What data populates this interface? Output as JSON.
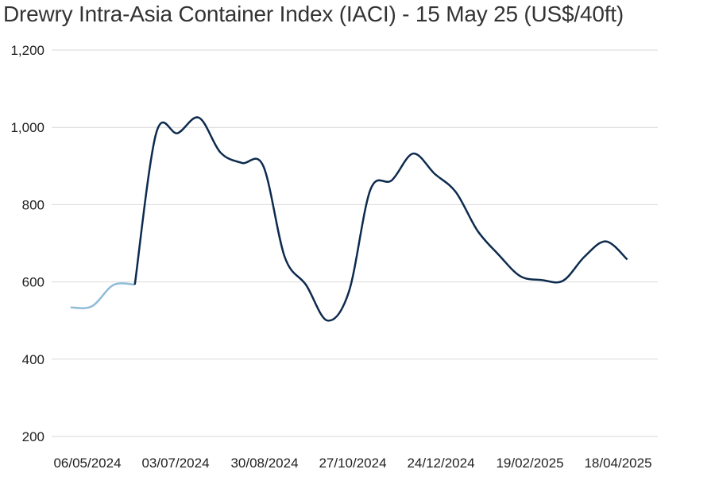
{
  "chart_data": {
    "type": "line",
    "title": "Drewry Intra-Asia Container Index (IACI) - 15 May 25 (US$/40ft)",
    "xlabel": "",
    "ylabel": "",
    "ylim": [
      200,
      1200
    ],
    "y_ticks": [
      "1,200",
      "1,000",
      "800",
      "600",
      "400",
      "200"
    ],
    "x_ticks": [
      "06/05/2024",
      "03/07/2024",
      "30/08/2024",
      "27/10/2024",
      "24/12/2024",
      "19/02/2025",
      "18/04/2025"
    ],
    "grid": true,
    "legend": "none",
    "colors": {
      "early": "#8fbcd8",
      "main": "#0d2b4e",
      "grid": "#d9d9d9"
    },
    "series": [
      {
        "values_early": [
          {
            "x": "2024-04-25",
            "y": 534
          },
          {
            "x": "2024-05-09",
            "y": 537
          },
          {
            "x": "2024-05-23",
            "y": 592
          },
          {
            "x": "2024-06-06",
            "y": 593
          }
        ],
        "values": [
          {
            "x": "2024-06-06",
            "y": 593
          },
          {
            "x": "2024-06-20",
            "y": 985
          },
          {
            "x": "2024-07-04",
            "y": 985
          },
          {
            "x": "2024-07-18",
            "y": 1025
          },
          {
            "x": "2024-08-01",
            "y": 935
          },
          {
            "x": "2024-08-15",
            "y": 908
          },
          {
            "x": "2024-08-29",
            "y": 900
          },
          {
            "x": "2024-09-12",
            "y": 665
          },
          {
            "x": "2024-09-26",
            "y": 592
          },
          {
            "x": "2024-10-10",
            "y": 500
          },
          {
            "x": "2024-10-24",
            "y": 575
          },
          {
            "x": "2024-11-07",
            "y": 838
          },
          {
            "x": "2024-11-21",
            "y": 863
          },
          {
            "x": "2024-12-05",
            "y": 932
          },
          {
            "x": "2024-12-19",
            "y": 880
          },
          {
            "x": "2025-01-02",
            "y": 832
          },
          {
            "x": "2025-01-16",
            "y": 733
          },
          {
            "x": "2025-01-30",
            "y": 670
          },
          {
            "x": "2025-02-13",
            "y": 615
          },
          {
            "x": "2025-02-27",
            "y": 605
          },
          {
            "x": "2025-03-13",
            "y": 603
          },
          {
            "x": "2025-03-27",
            "y": 665
          },
          {
            "x": "2025-04-10",
            "y": 705
          },
          {
            "x": "2025-04-24",
            "y": 658
          }
        ]
      }
    ]
  }
}
